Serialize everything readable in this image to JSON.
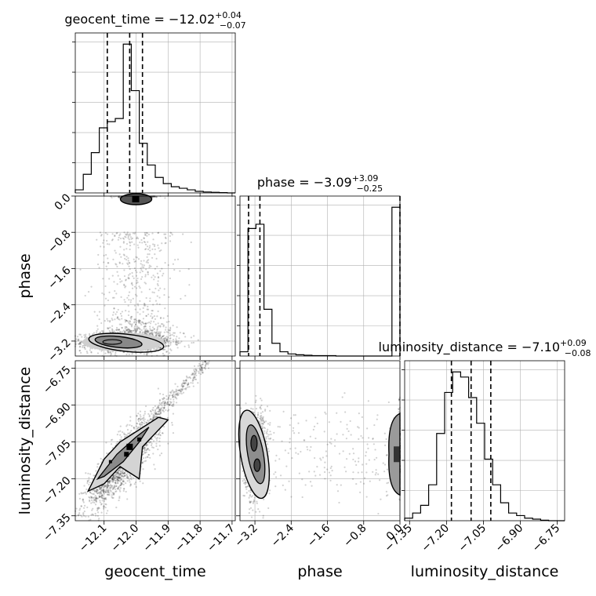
{
  "chart_data": {
    "type": "corner",
    "params": [
      {
        "name": "geocent_time",
        "median": "−12.02",
        "plus": "+0.04",
        "minus": "−0.07",
        "range": [
          -12.19,
          -11.69
        ],
        "ticks": [
          {
            "v": -12.1,
            "label": "−12.1"
          },
          {
            "v": -12.0,
            "label": "−12.0"
          },
          {
            "v": -11.9,
            "label": "−11.9"
          },
          {
            "v": -11.8,
            "label": "−11.8"
          },
          {
            "v": -11.7,
            "label": "−11.7"
          }
        ],
        "quantiles": [
          -12.09,
          -12.02,
          -11.98
        ],
        "hist_edges": [
          -12.19,
          -11.69
        ],
        "hist": [
          1,
          6,
          13,
          21,
          23,
          24,
          48,
          33,
          16,
          9,
          5,
          3,
          2,
          1.5,
          1,
          0.5,
          0.3,
          0.2,
          0.1,
          0
        ]
      },
      {
        "name": "phase",
        "median": "−3.09",
        "plus": "+3.09",
        "minus": "−0.25",
        "range": [
          -3.53,
          0.0
        ],
        "ticks": [
          {
            "v": -3.2,
            "label": "−3.2"
          },
          {
            "v": -2.4,
            "label": "−2.4"
          },
          {
            "v": -1.6,
            "label": "−1.6"
          },
          {
            "v": -0.8,
            "label": "−0.8"
          },
          {
            "v": 0.0,
            "label": "0.0"
          }
        ],
        "quantiles": [
          -3.34,
          -3.09,
          0.0
        ],
        "hist_edges": [
          -3.53,
          0.0
        ],
        "hist": [
          1,
          30,
          31,
          11,
          3,
          1,
          0.5,
          0.3,
          0.2,
          0.1,
          0.1,
          0.1,
          0,
          0,
          0,
          0,
          0,
          0,
          0,
          35
        ]
      },
      {
        "name": "luminosity_distance",
        "median": "−7.10",
        "plus": "+0.09",
        "minus": "−0.08",
        "range": [
          -7.37,
          -6.72
        ],
        "ticks": [
          {
            "v": -7.35,
            "label": "−7.35"
          },
          {
            "v": -7.2,
            "label": "−7.20"
          },
          {
            "v": -7.05,
            "label": "−7.05"
          },
          {
            "v": -6.9,
            "label": "−6.90"
          },
          {
            "v": -6.75,
            "label": "−6.75"
          }
        ],
        "quantiles": [
          -7.18,
          -7.1,
          -7.02
        ],
        "hist_edges": [
          -7.37,
          -6.72
        ],
        "hist": [
          0.5,
          1.5,
          3,
          7,
          17,
          25,
          29,
          28,
          24,
          19,
          12,
          7,
          3.5,
          1.5,
          1,
          0.5,
          0.3,
          0.1,
          0,
          0
        ]
      }
    ],
    "grid": true
  }
}
